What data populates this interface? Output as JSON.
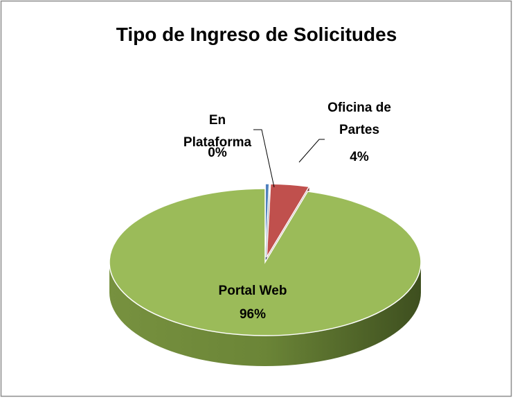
{
  "chart_data": {
    "type": "pie",
    "title": "Tipo de Ingreso de Solicitudes",
    "categories": [
      "En Plataforma",
      "Oficina de Partes",
      "Portal Web"
    ],
    "values": [
      0.4,
      4,
      95.6
    ],
    "value_labels": [
      "0%",
      "4%",
      "96%"
    ],
    "colors": [
      "#4f81bd",
      "#c0504d",
      "#9bbb59"
    ]
  }
}
